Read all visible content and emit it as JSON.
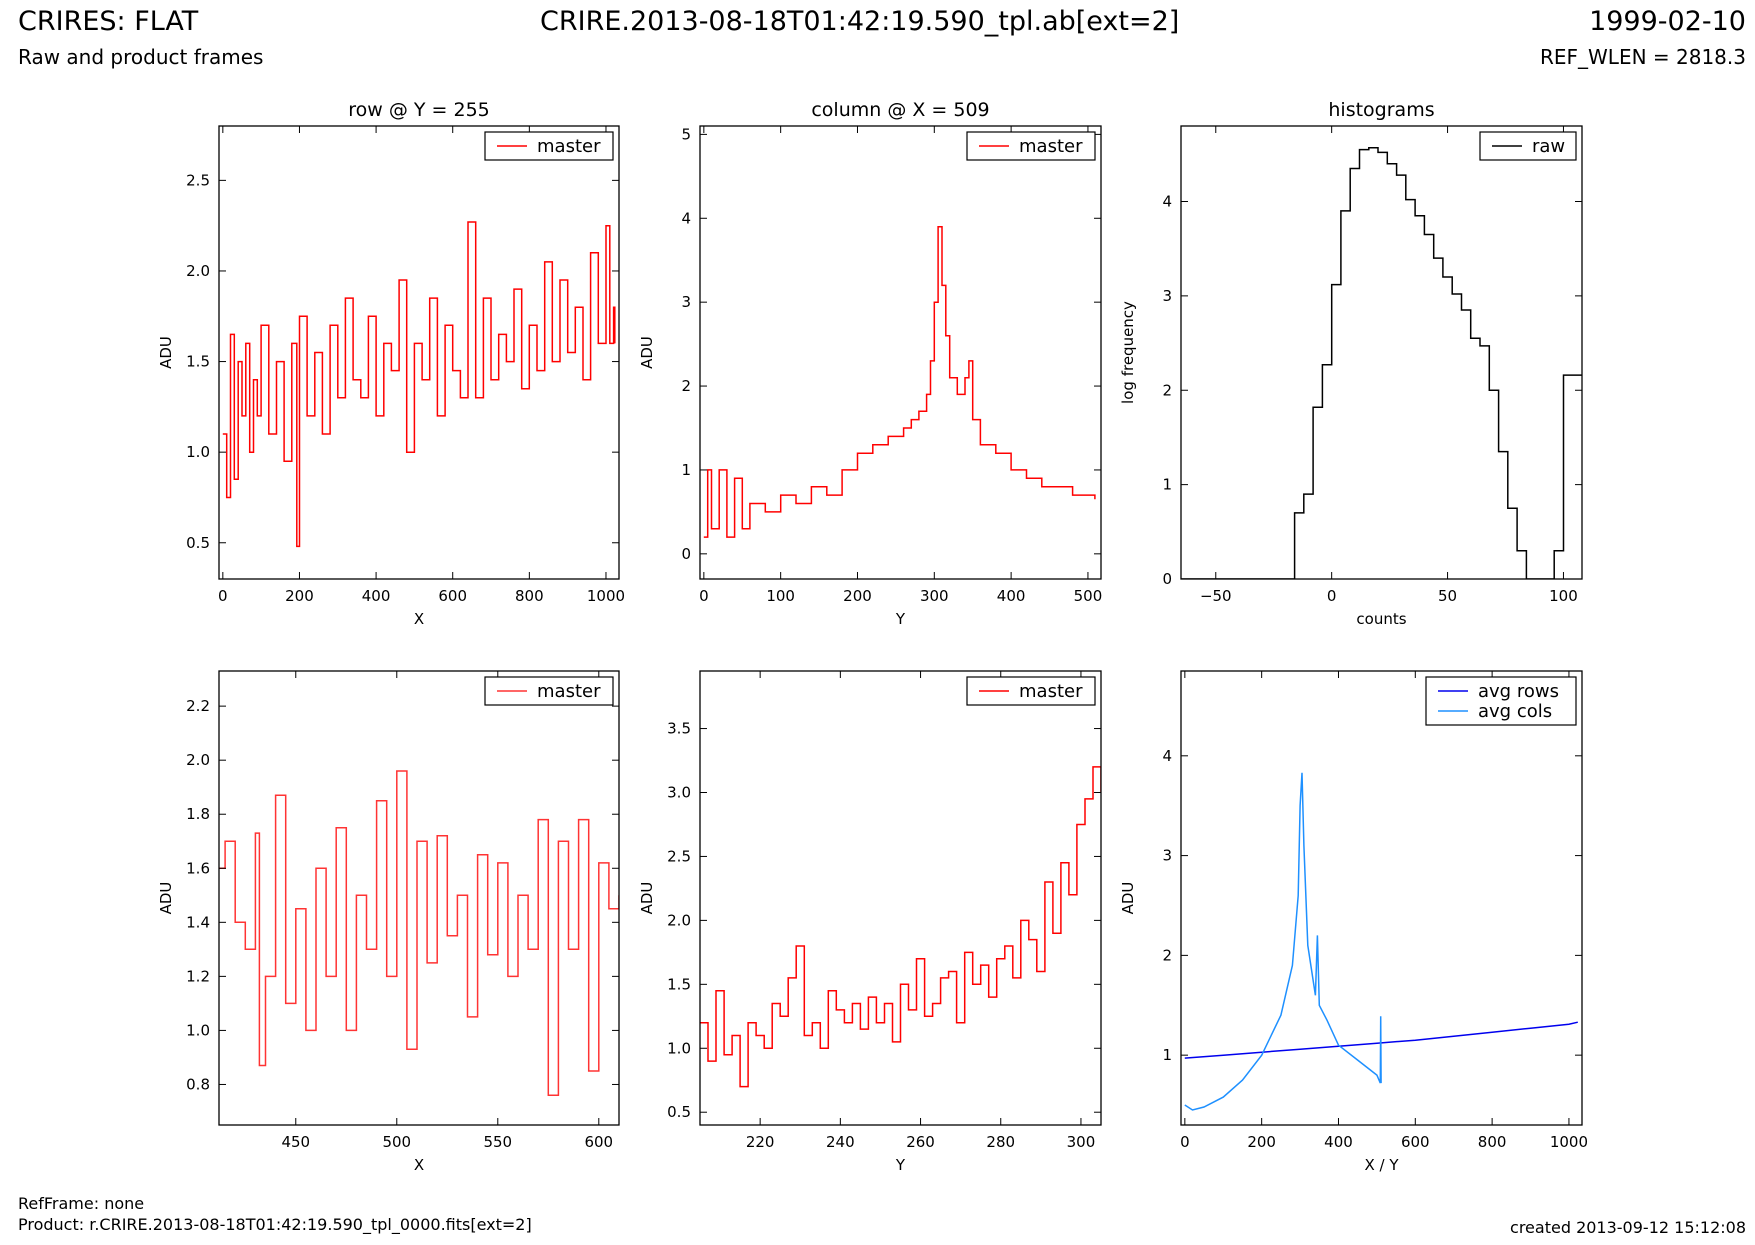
{
  "header": {
    "title": "CRIRES: FLAT",
    "file": "CRIRE.2013-08-18T01:42:19.590_tpl.ab[ext=2]",
    "date": "1999-02-10",
    "subtitle": "Raw and product frames",
    "ref_wlen": "REF_WLEN = 2818.3"
  },
  "footer": {
    "refframe": "RefFrame: none",
    "product": "Product: r.CRIRE.2013-08-18T01:42:19.590_tpl_0000.fits[ext=2]",
    "created": "created 2013-09-12 15:12:08"
  },
  "colors": {
    "master": "#ff0000",
    "master_zoom": "#ff3333",
    "raw": "#000000",
    "avg_rows": "#0000ee",
    "avg_cols": "#1e90ff"
  },
  "chart_data": [
    {
      "id": "row",
      "type": "line",
      "title": "row @ Y = 255",
      "xlabel": "X",
      "ylabel": "ADU",
      "xlim": [
        -10,
        1034
      ],
      "ylim": [
        0.3,
        2.8
      ],
      "xticks": [
        "0",
        "200",
        "400",
        "600",
        "800",
        "1000"
      ],
      "yticks": [
        "0.5",
        "1.0",
        "1.5",
        "2.0",
        "2.5"
      ],
      "legend": "top-right",
      "series": [
        {
          "name": "master",
          "color": "#ff0000",
          "step": true,
          "x": [
            0,
            10,
            20,
            30,
            40,
            50,
            60,
            70,
            80,
            90,
            100,
            120,
            140,
            160,
            180,
            193,
            200,
            220,
            240,
            260,
            280,
            300,
            320,
            340,
            360,
            380,
            400,
            420,
            440,
            460,
            480,
            500,
            520,
            540,
            560,
            580,
            600,
            620,
            640,
            660,
            680,
            700,
            720,
            740,
            760,
            780,
            800,
            820,
            840,
            860,
            880,
            900,
            920,
            940,
            960,
            980,
            1000,
            1010,
            1020,
            1023
          ],
          "y": [
            1.1,
            0.75,
            1.65,
            0.85,
            1.5,
            1.2,
            1.6,
            1.0,
            1.4,
            1.2,
            1.7,
            1.1,
            1.5,
            0.95,
            1.6,
            0.48,
            1.75,
            1.2,
            1.55,
            1.1,
            1.7,
            1.3,
            1.85,
            1.4,
            1.3,
            1.75,
            1.2,
            1.6,
            1.45,
            1.95,
            1.0,
            1.6,
            1.4,
            1.85,
            1.2,
            1.7,
            1.45,
            1.3,
            2.27,
            1.3,
            1.85,
            1.4,
            1.65,
            1.5,
            1.9,
            1.35,
            1.7,
            1.45,
            2.05,
            1.5,
            1.95,
            1.55,
            1.8,
            1.4,
            2.1,
            1.6,
            2.25,
            1.6,
            1.8,
            1.6
          ]
        }
      ]
    },
    {
      "id": "column",
      "type": "line",
      "title": "column @ X = 509",
      "xlabel": "Y",
      "ylabel": "ADU",
      "xlim": [
        -5,
        517
      ],
      "ylim": [
        -0.3,
        5.1
      ],
      "xticks": [
        "0",
        "100",
        "200",
        "300",
        "400",
        "500"
      ],
      "yticks": [
        "0",
        "1",
        "2",
        "3",
        "4",
        "5"
      ],
      "legend": "top-right",
      "series": [
        {
          "name": "master",
          "color": "#ff0000",
          "step": true,
          "x": [
            0,
            5,
            10,
            20,
            30,
            40,
            50,
            60,
            80,
            100,
            120,
            140,
            160,
            180,
            200,
            220,
            240,
            260,
            270,
            280,
            290,
            295,
            300,
            305,
            310,
            315,
            320,
            330,
            340,
            345,
            350,
            360,
            380,
            400,
            420,
            440,
            460,
            480,
            500,
            509
          ],
          "y": [
            0.2,
            1.0,
            0.3,
            1.0,
            0.2,
            0.9,
            0.3,
            0.6,
            0.5,
            0.7,
            0.6,
            0.8,
            0.7,
            1.0,
            1.2,
            1.3,
            1.4,
            1.5,
            1.6,
            1.7,
            1.9,
            2.3,
            3.0,
            3.9,
            3.2,
            2.6,
            2.1,
            1.9,
            2.1,
            2.3,
            1.6,
            1.3,
            1.2,
            1.0,
            0.9,
            0.8,
            0.8,
            0.7,
            0.7,
            0.65
          ]
        }
      ]
    },
    {
      "id": "hist",
      "type": "line",
      "title": "histograms",
      "xlabel": "counts",
      "ylabel": "log frequency",
      "xlim": [
        -65,
        108
      ],
      "ylim": [
        0,
        4.8
      ],
      "xticks": [
        "−50",
        "0",
        "50",
        "100"
      ],
      "yticks": [
        "0",
        "1",
        "2",
        "3",
        "4"
      ],
      "legend": "top-right",
      "series": [
        {
          "name": "raw",
          "color": "#000000",
          "step": true,
          "x": [
            -65,
            -20,
            -16,
            -12,
            -8,
            -4,
            0,
            4,
            8,
            12,
            16,
            20,
            24,
            28,
            32,
            36,
            40,
            44,
            48,
            52,
            56,
            60,
            64,
            68,
            72,
            76,
            80,
            84,
            88,
            92,
            96,
            100,
            104,
            108
          ],
          "y": [
            0,
            0,
            0.7,
            0.9,
            1.82,
            2.27,
            3.12,
            3.9,
            4.35,
            4.55,
            4.57,
            4.52,
            4.4,
            4.28,
            4.02,
            3.85,
            3.65,
            3.4,
            3.2,
            3.02,
            2.85,
            2.55,
            2.47,
            2.0,
            1.35,
            0.75,
            0.3,
            0,
            0,
            0,
            0.3,
            2.16,
            2.16,
            2.16
          ]
        }
      ]
    },
    {
      "id": "row-zoom",
      "type": "line",
      "title": "",
      "xlabel": "X",
      "ylabel": "ADU",
      "xlim": [
        412,
        610
      ],
      "ylim": [
        0.65,
        2.33
      ],
      "xticks": [
        "450",
        "500",
        "550",
        "600"
      ],
      "yticks": [
        "0.8",
        "1.0",
        "1.2",
        "1.4",
        "1.6",
        "1.8",
        "2.0",
        "2.2"
      ],
      "legend": "top-right",
      "series": [
        {
          "name": "master",
          "color": "#ff3333",
          "step": true,
          "x": [
            412,
            415,
            420,
            425,
            430,
            432,
            435,
            440,
            445,
            450,
            455,
            460,
            465,
            470,
            475,
            480,
            485,
            490,
            495,
            500,
            505,
            510,
            515,
            520,
            525,
            530,
            535,
            540,
            545,
            550,
            555,
            560,
            565,
            570,
            575,
            580,
            585,
            590,
            595,
            600,
            605,
            610
          ],
          "y": [
            1.6,
            1.7,
            1.4,
            1.3,
            1.73,
            0.87,
            1.2,
            1.87,
            1.1,
            1.45,
            1.0,
            1.6,
            1.2,
            1.75,
            1.0,
            1.5,
            1.3,
            1.85,
            1.2,
            1.96,
            0.93,
            1.7,
            1.25,
            1.72,
            1.35,
            1.5,
            1.05,
            1.65,
            1.28,
            1.62,
            1.2,
            1.5,
            1.3,
            1.78,
            0.76,
            1.7,
            1.3,
            1.78,
            0.85,
            1.62,
            1.45,
            1.5
          ]
        }
      ]
    },
    {
      "id": "column-zoom",
      "type": "line",
      "title": "",
      "xlabel": "Y",
      "ylabel": "ADU",
      "xlim": [
        205,
        305
      ],
      "ylim": [
        0.4,
        3.95
      ],
      "xticks": [
        "220",
        "240",
        "260",
        "280",
        "300"
      ],
      "yticks": [
        "0.5",
        "1.0",
        "1.5",
        "2.0",
        "2.5",
        "3.0",
        "3.5"
      ],
      "legend": "top-right",
      "series": [
        {
          "name": "master",
          "color": "#ff0000",
          "step": true,
          "x": [
            205,
            207,
            209,
            211,
            213,
            215,
            217,
            219,
            221,
            223,
            225,
            227,
            229,
            231,
            233,
            235,
            237,
            239,
            241,
            243,
            245,
            247,
            249,
            251,
            253,
            255,
            257,
            259,
            261,
            263,
            265,
            267,
            269,
            271,
            273,
            275,
            277,
            279,
            281,
            283,
            285,
            287,
            289,
            291,
            293,
            295,
            297,
            299,
            301,
            303,
            305
          ],
          "y": [
            1.2,
            0.9,
            1.45,
            0.95,
            1.1,
            0.7,
            1.2,
            1.1,
            1.0,
            1.35,
            1.25,
            1.55,
            1.8,
            1.1,
            1.2,
            1.0,
            1.45,
            1.3,
            1.2,
            1.35,
            1.15,
            1.4,
            1.2,
            1.35,
            1.05,
            1.5,
            1.3,
            1.7,
            1.25,
            1.35,
            1.55,
            1.6,
            1.2,
            1.75,
            1.5,
            1.65,
            1.4,
            1.7,
            1.8,
            1.55,
            2.0,
            1.85,
            1.6,
            2.3,
            1.9,
            2.45,
            2.2,
            2.75,
            2.95,
            3.2,
            3.0
          ]
        }
      ]
    },
    {
      "id": "avg",
      "type": "line",
      "title": "",
      "xlabel": "X / Y",
      "ylabel": "ADU",
      "xlim": [
        -10,
        1034
      ],
      "ylim": [
        0.3,
        4.85
      ],
      "xticks": [
        "0",
        "200",
        "400",
        "600",
        "800",
        "1000"
      ],
      "yticks": [
        "1",
        "2",
        "3",
        "4"
      ],
      "legend": "top-right",
      "series": [
        {
          "name": "avg rows",
          "color": "#0000ee",
          "step": false,
          "x": [
            0,
            100,
            200,
            300,
            400,
            500,
            600,
            700,
            800,
            900,
            1000,
            1023
          ],
          "y": [
            0.97,
            1.0,
            1.03,
            1.06,
            1.09,
            1.12,
            1.15,
            1.19,
            1.23,
            1.27,
            1.31,
            1.33
          ]
        },
        {
          "name": "avg cols",
          "color": "#1e90ff",
          "step": false,
          "x": [
            0,
            20,
            50,
            100,
            150,
            200,
            250,
            280,
            295,
            300,
            305,
            310,
            320,
            340,
            345,
            350,
            370,
            400,
            450,
            500,
            509,
            510,
            511
          ],
          "y": [
            0.5,
            0.45,
            0.48,
            0.58,
            0.75,
            1.0,
            1.4,
            1.9,
            2.6,
            3.5,
            3.83,
            3.1,
            2.1,
            1.6,
            2.2,
            1.5,
            1.35,
            1.1,
            0.95,
            0.8,
            0.72,
            1.39,
            0.72
          ]
        }
      ]
    }
  ]
}
